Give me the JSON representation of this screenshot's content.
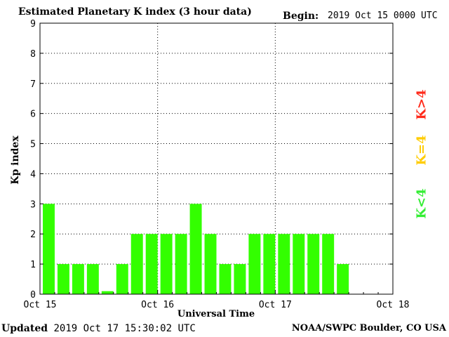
{
  "header": {
    "title": "Estimated Planetary K index (3 hour data)",
    "begin_label": "Begin:",
    "begin_value": "2019 Oct 15 0000 UTC"
  },
  "footer": {
    "updated_label": "Updated",
    "updated_value": "2019 Oct 17 15:30:02 UTC",
    "credit": "NOAA/SWPC Boulder, CO USA"
  },
  "legend": {
    "high": "K>4",
    "mid": "K=4",
    "low": "K<4",
    "colors": {
      "high": "#ff2a1a",
      "mid": "#ffcc00",
      "low": "#33ee33"
    }
  },
  "chart_data": {
    "type": "bar",
    "title": "Estimated Planetary K index (3 hour data)",
    "xlabel": "Universal Time",
    "ylabel": "Kp index",
    "ylim": [
      0,
      9
    ],
    "yticks": [
      "0",
      "1",
      "2",
      "3",
      "4",
      "5",
      "6",
      "7",
      "8",
      "9"
    ],
    "xticks": [
      "Oct 15",
      "Oct 16",
      "Oct 17",
      "Oct 18"
    ],
    "bar_color": "#33ff00",
    "grid": true,
    "categories": [
      "2019-10-15 00:00",
      "2019-10-15 03:00",
      "2019-10-15 06:00",
      "2019-10-15 09:00",
      "2019-10-15 12:00",
      "2019-10-15 15:00",
      "2019-10-15 18:00",
      "2019-10-15 21:00",
      "2019-10-16 00:00",
      "2019-10-16 03:00",
      "2019-10-16 06:00",
      "2019-10-16 09:00",
      "2019-10-16 12:00",
      "2019-10-16 15:00",
      "2019-10-16 18:00",
      "2019-10-16 21:00",
      "2019-10-17 00:00",
      "2019-10-17 03:00",
      "2019-10-17 06:00",
      "2019-10-17 09:00",
      "2019-10-17 12:00"
    ],
    "values": [
      3,
      1,
      1,
      1,
      0.1,
      1,
      2,
      2,
      2,
      2,
      3,
      2,
      1,
      1,
      2,
      2,
      2,
      2,
      2,
      2,
      1
    ]
  }
}
